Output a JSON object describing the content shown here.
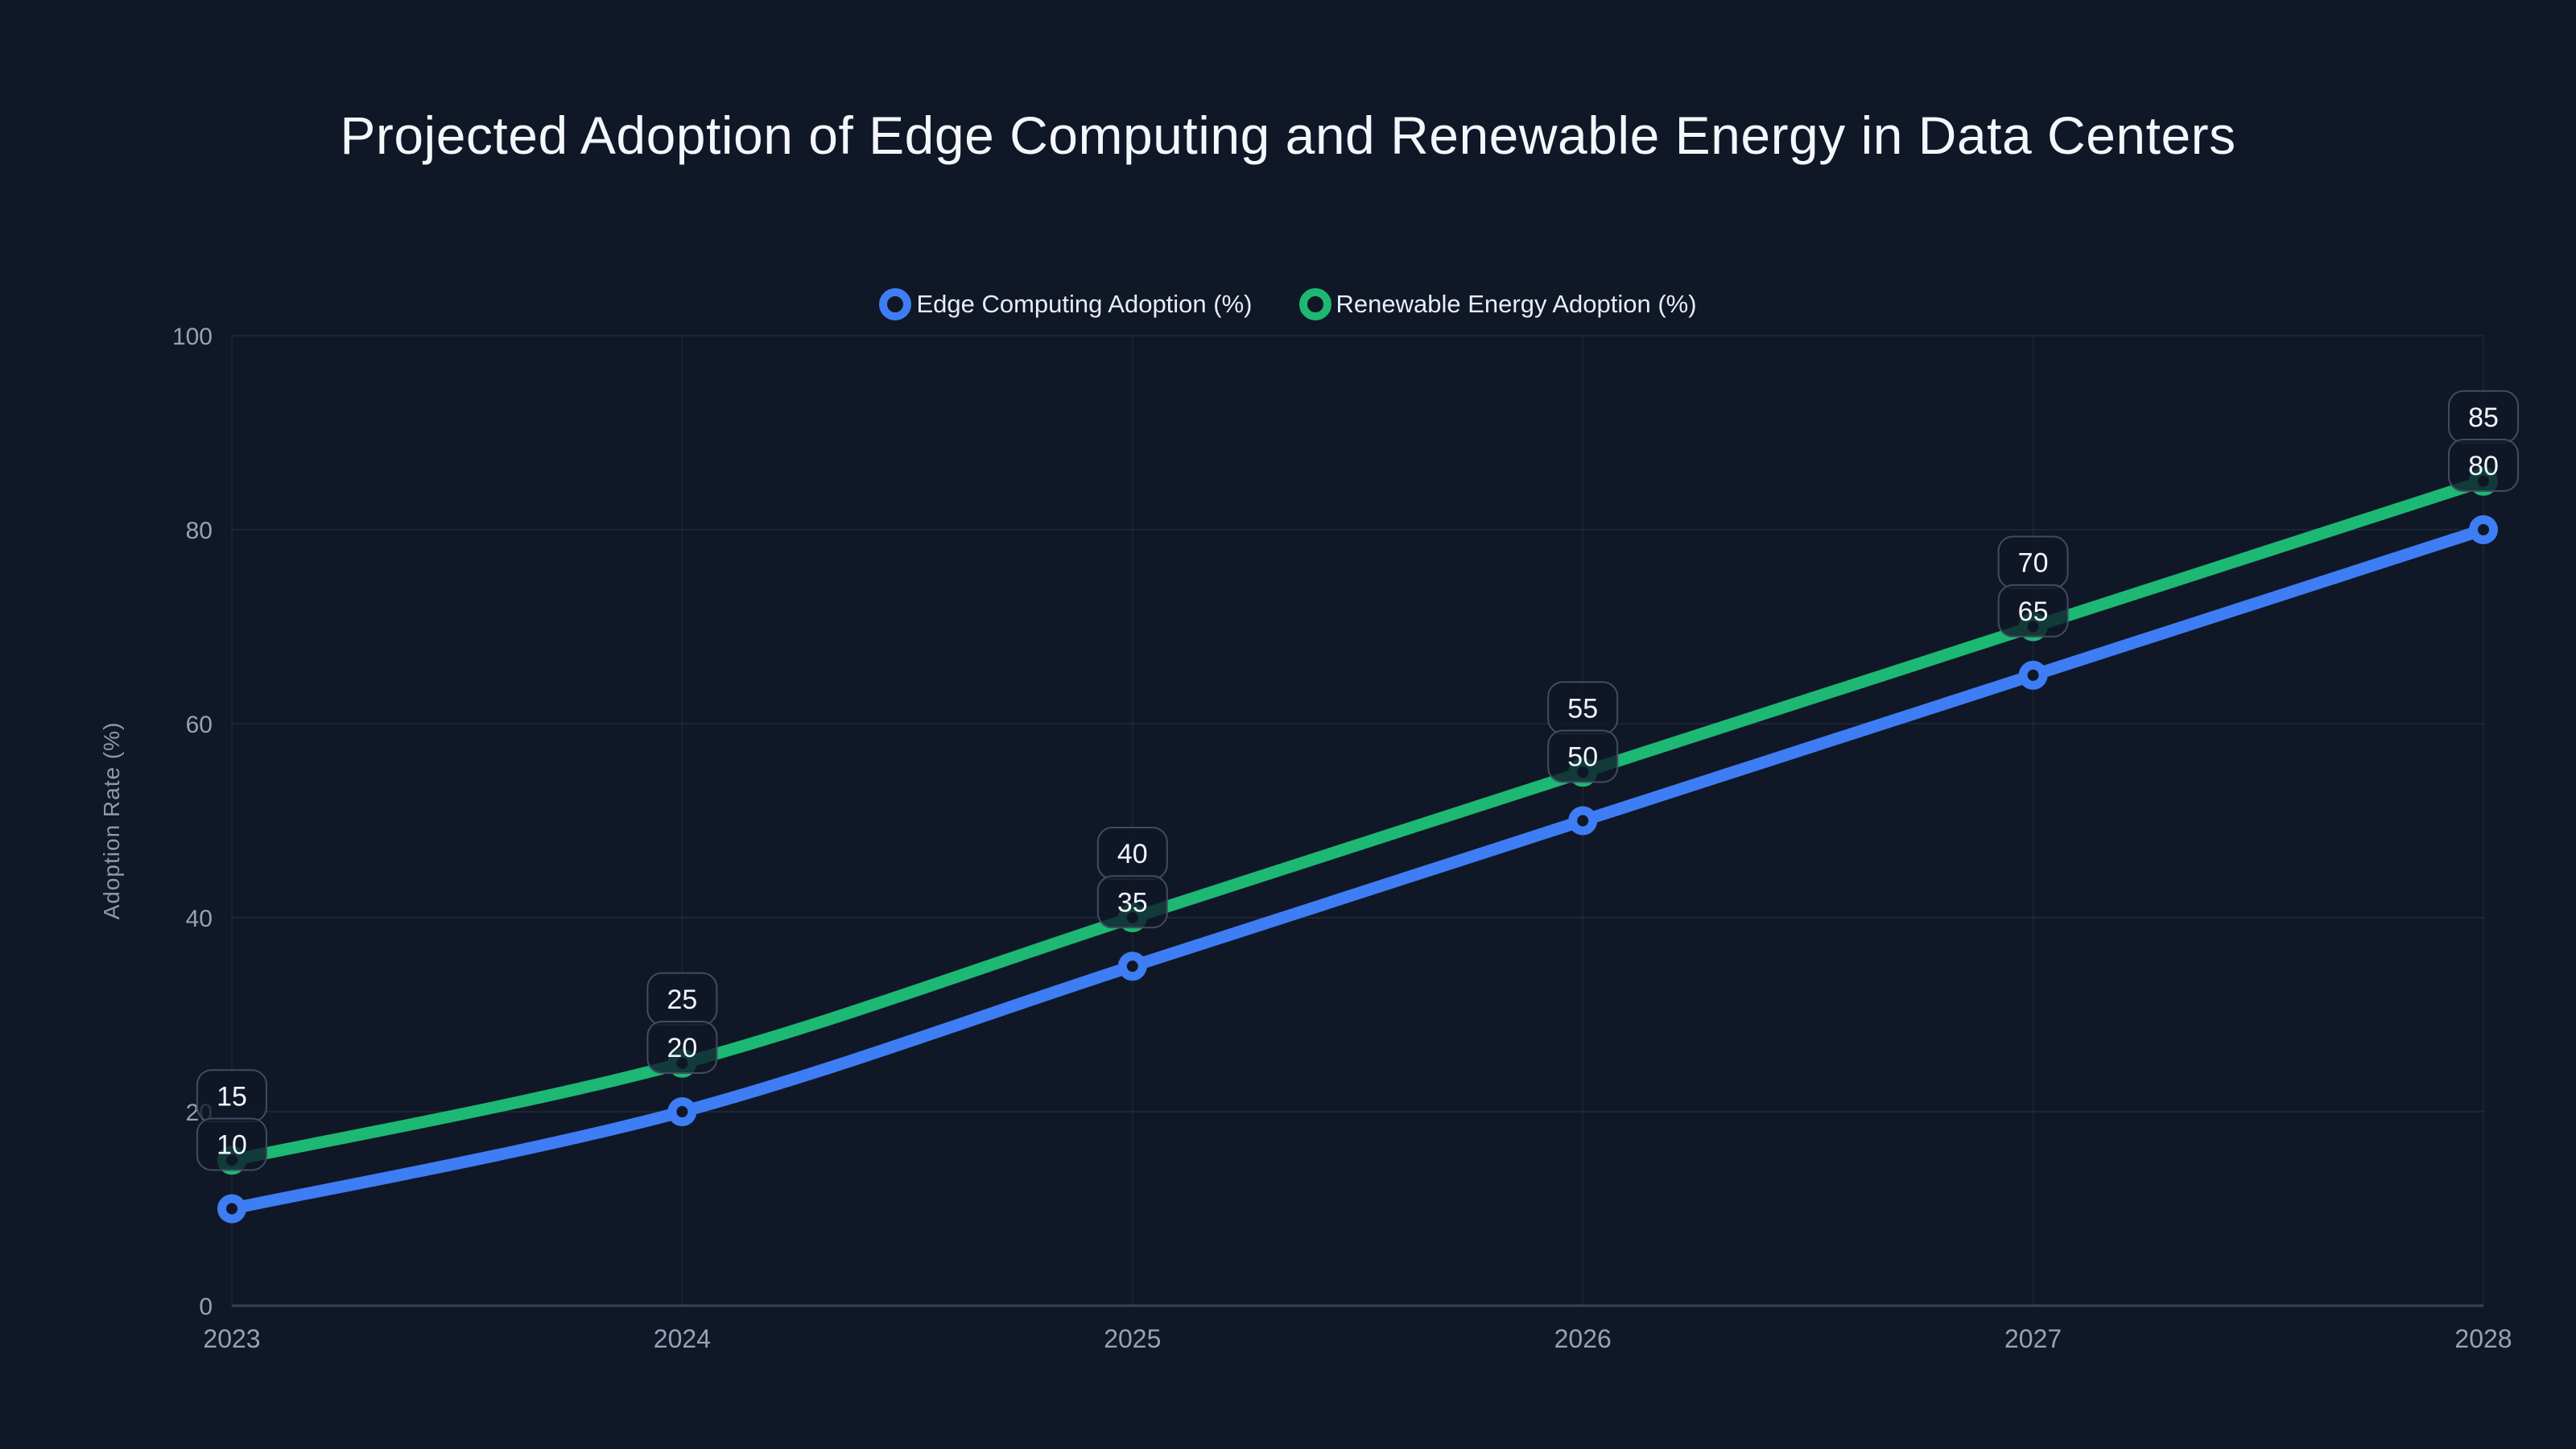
{
  "chart_data": {
    "type": "line",
    "title": "Projected Adoption of Edge Computing and Renewable Energy in Data Centers",
    "x": [
      2023,
      2024,
      2025,
      2026,
      2027,
      2028
    ],
    "series": [
      {
        "name": "Edge Computing Adoption (%)",
        "color": "#3e7df4",
        "values": [
          10,
          20,
          35,
          50,
          65,
          80
        ]
      },
      {
        "name": "Renewable Energy Adoption (%)",
        "color": "#1db873",
        "values": [
          15,
          25,
          40,
          55,
          70,
          85
        ]
      }
    ],
    "xlabel": "",
    "ylabel": "Adoption Rate (%)",
    "ylim": [
      0,
      100
    ],
    "yticks": [
      0,
      20,
      40,
      60,
      80,
      100
    ],
    "grid": true,
    "smooth": true,
    "point_labels": true,
    "legend_position": "top",
    "background_color": "#101726",
    "point_label_text_color": "#f2f5fa",
    "axis_text_color": "#94a3b8"
  }
}
